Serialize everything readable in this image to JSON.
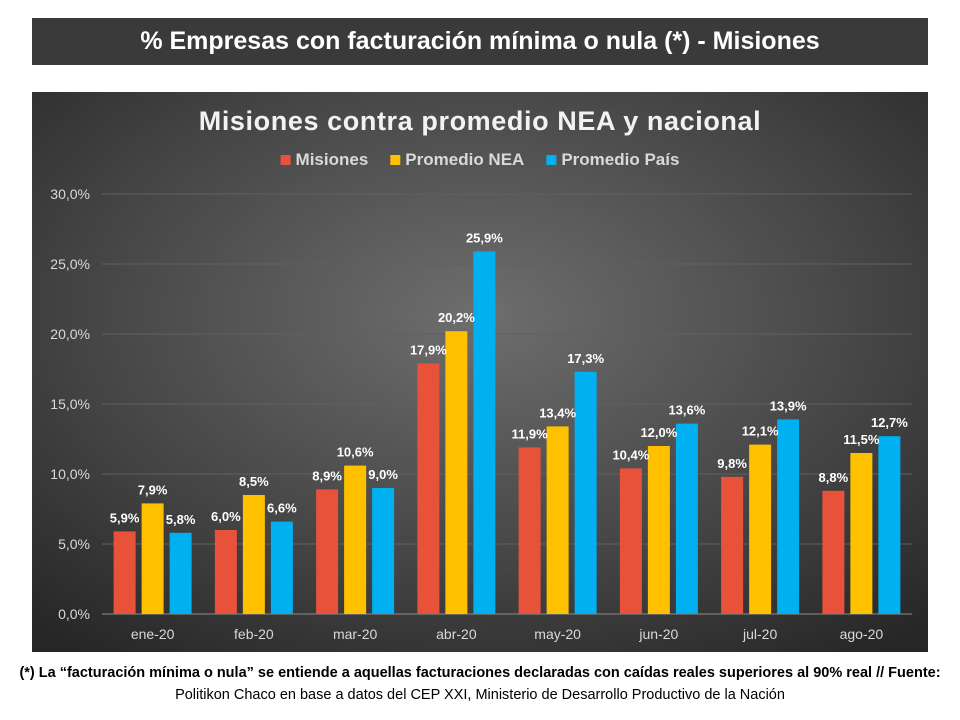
{
  "header": {
    "title": "% Empresas con facturación mínima o nula (*) - Misiones"
  },
  "footnote": {
    "bold_part": "(*) La “facturación mínima o nula” se entiende a aquellas facturaciones declaradas con caídas reales superiores al 90% real // Fuente:",
    "regular_part": " Politikon Chaco en base a datos del CEP XXI, Ministerio de Desarrollo Productivo de la Nación"
  },
  "chart_data": {
    "type": "bar",
    "title": "Misiones contra promedio NEA y nacional",
    "xlabel": "",
    "ylabel": "",
    "ylim": [
      0,
      30
    ],
    "yticks": [
      0,
      5,
      10,
      15,
      20,
      25,
      30
    ],
    "ytick_labels": [
      "0,0%",
      "5,0%",
      "10,0%",
      "15,0%",
      "20,0%",
      "25,0%",
      "30,0%"
    ],
    "grid": true,
    "legend_position": "top-center",
    "categories": [
      "ene-20",
      "feb-20",
      "mar-20",
      "abr-20",
      "may-20",
      "jun-20",
      "jul-20",
      "ago-20"
    ],
    "series": [
      {
        "name": "Misiones",
        "color": "#e8523a",
        "values": [
          5.9,
          6.0,
          8.9,
          17.9,
          11.9,
          10.4,
          9.8,
          8.8
        ],
        "labels": [
          "5,9%",
          "6,0%",
          "8,9%",
          "17,9%",
          "11,9%",
          "10,4%",
          "9,8%",
          "8,8%"
        ]
      },
      {
        "name": "Promedio NEA",
        "color": "#ffc000",
        "values": [
          7.9,
          8.5,
          10.6,
          20.2,
          13.4,
          12.0,
          12.1,
          11.5
        ],
        "labels": [
          "7,9%",
          "8,5%",
          "10,6%",
          "20,2%",
          "13,4%",
          "12,0%",
          "12,1%",
          "11,5%"
        ]
      },
      {
        "name": "Promedio País",
        "color": "#00b0f0",
        "values": [
          5.8,
          6.6,
          9.0,
          25.9,
          17.3,
          13.6,
          13.9,
          12.7
        ],
        "labels": [
          "5,8%",
          "6,6%",
          "9,0%",
          "25,9%",
          "17,3%",
          "13,6%",
          "13,9%",
          "12,7%"
        ]
      }
    ]
  }
}
